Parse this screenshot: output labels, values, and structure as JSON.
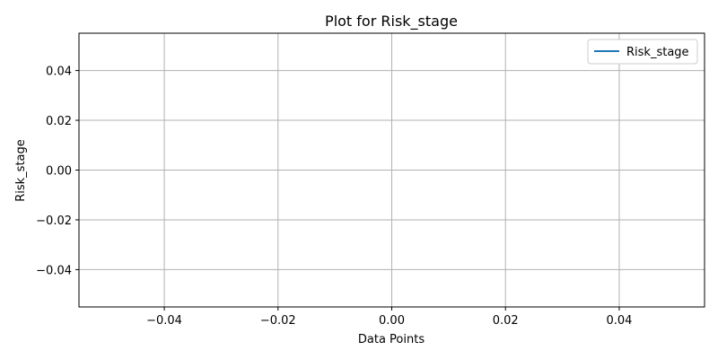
{
  "chart_data": {
    "type": "line",
    "title": "Plot for Risk_stage",
    "xlabel": "Data Points",
    "ylabel": "Risk_stage",
    "xlim": [
      -0.055,
      0.055
    ],
    "ylim": [
      -0.055,
      0.055
    ],
    "x_ticks": [
      -0.04,
      -0.02,
      0.0,
      0.02,
      0.04
    ],
    "y_ticks": [
      -0.04,
      -0.02,
      0.0,
      0.02,
      0.04
    ],
    "x_tick_labels": [
      "−0.04",
      "−0.02",
      "0.00",
      "0.02",
      "0.04"
    ],
    "y_tick_labels": [
      "−0.04",
      "−0.02",
      "0.00",
      "0.02",
      "0.04"
    ],
    "grid": true,
    "legend_position": "top-right",
    "series": [
      {
        "name": "Risk_stage",
        "x": [],
        "values": [],
        "color": "#1f77b4"
      }
    ]
  }
}
